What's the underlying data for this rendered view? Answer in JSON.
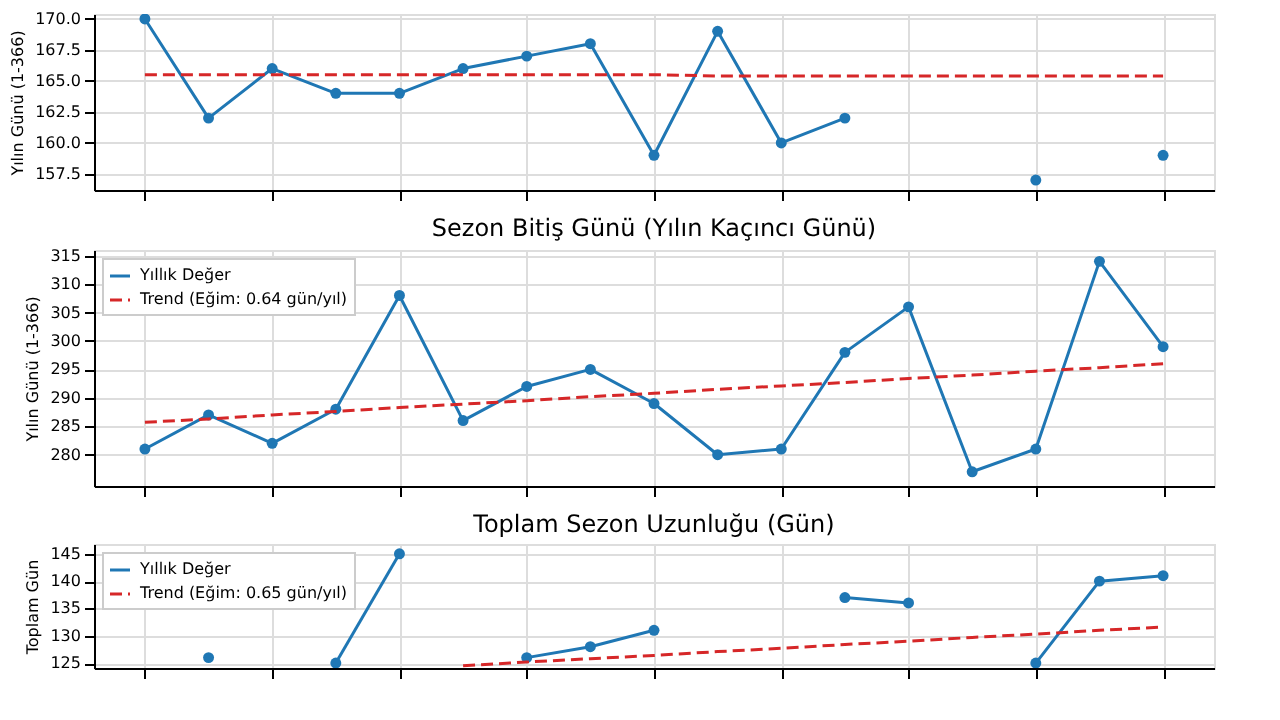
{
  "chart_data": [
    {
      "type": "line",
      "ylabel": "Yılın Günü (1-366)",
      "categories": [
        null,
        null,
        null,
        null,
        null,
        null,
        null,
        null,
        null,
        null,
        null,
        null,
        null,
        null,
        null,
        null,
        null
      ],
      "ylim": [
        156.2,
        170.4
      ],
      "yticks": [
        {
          "value": 157.5,
          "label": "157.5"
        },
        {
          "value": 160,
          "label": "160.0"
        },
        {
          "value": 162.5,
          "label": "162.5"
        },
        {
          "value": 165,
          "label": "165.0"
        },
        {
          "value": 167.5,
          "label": "167.5"
        },
        {
          "value": 170,
          "label": "170.0"
        }
      ],
      "grid": true,
      "tick_labels": "y",
      "series": [
        {
          "color": "#1f77b4",
          "marker": "circle",
          "line_style": "solid",
          "values": [
            170,
            162,
            166,
            164,
            164,
            166,
            167,
            168,
            159,
            169,
            160,
            162,
            null,
            null,
            157,
            null,
            159
          ]
        },
        {
          "color": "#d62728",
          "marker": "none",
          "line_style": "dashed",
          "values": [
            165.5,
            165.5,
            165.5,
            165.5,
            165.5,
            165.5,
            165.5,
            165.5,
            165.5,
            165.4,
            165.4,
            165.4,
            165.4,
            165.4,
            165.4,
            165.4,
            165.4
          ]
        }
      ]
    },
    {
      "type": "line",
      "title": "Sezon Bitiş Günü (Yılın Kaçıncı Günü)",
      "ylabel": "Yılın Günü (1-366)",
      "categories": [
        null,
        null,
        null,
        null,
        null,
        null,
        null,
        null,
        null,
        null,
        null,
        null,
        null,
        null,
        null,
        null,
        null
      ],
      "ylim": [
        274.5,
        316
      ],
      "yticks": [
        280,
        285,
        290,
        295,
        300,
        305,
        310,
        315
      ],
      "grid": true,
      "tick_labels": "y",
      "legend": "top left",
      "series": [
        {
          "name": "Yıllık Değer",
          "color": "#1f77b4",
          "marker": "circle",
          "line_style": "solid",
          "values": [
            281,
            287,
            282,
            288,
            308,
            286,
            292,
            295,
            289,
            280,
            281,
            298,
            306,
            277,
            281,
            314,
            299
          ]
        },
        {
          "name": "Trend (Eğim: 0.64 gün/yıl)",
          "color": "#d62728",
          "marker": "none",
          "line_style": "dashed",
          "values": [
            285.7,
            286.3,
            287.0,
            287.6,
            288.3,
            288.9,
            289.5,
            290.2,
            290.8,
            291.5,
            292.1,
            292.7,
            293.4,
            294.0,
            294.7,
            295.3,
            296.0
          ]
        }
      ]
    },
    {
      "type": "line",
      "title": "Toplam Sezon Uzunluğu (Gün)",
      "ylabel": "Toplam Gün",
      "categories": [
        null,
        null,
        null,
        null,
        null,
        null,
        null,
        null,
        null,
        null,
        null,
        null,
        null,
        null,
        null,
        null,
        null
      ],
      "ylim": [
        124.1,
        146.8
      ],
      "yticks": [
        125,
        130,
        135,
        140,
        145
      ],
      "grid": true,
      "tick_labels": "y",
      "legend": "top left",
      "series": [
        {
          "name": "Yıllık Değer",
          "color": "#1f77b4",
          "marker": "circle",
          "line_style": "solid",
          "values": [
            null,
            126,
            null,
            125,
            145,
            null,
            126,
            128,
            131,
            null,
            null,
            137,
            136,
            null,
            125,
            140,
            141
          ]
        },
        {
          "name": "Trend (Eğim: 0.65 gün/yıl)",
          "color": "#d62728",
          "marker": "none",
          "line_style": "dashed",
          "values": [
            null,
            null,
            null,
            null,
            null,
            124.5,
            125.2,
            125.8,
            126.4,
            127.1,
            127.7,
            128.4,
            129.0,
            129.7,
            130.3,
            131.0,
            131.6
          ]
        }
      ]
    }
  ]
}
